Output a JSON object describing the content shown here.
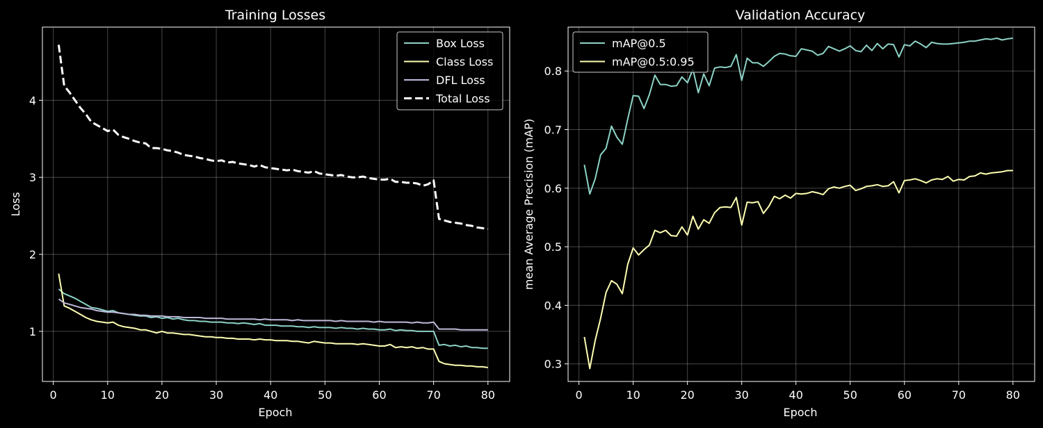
{
  "figure": {
    "background": "#000000"
  },
  "chart_data": [
    {
      "type": "line",
      "title": "Training Losses",
      "xlabel": "Epoch",
      "ylabel": "Loss",
      "xlim": [
        -2,
        84
      ],
      "ylim": [
        0.35,
        4.95
      ],
      "xticks": [
        "0",
        "10",
        "20",
        "30",
        "40",
        "50",
        "60",
        "70",
        "80"
      ],
      "yticks": [
        "1",
        "2",
        "3",
        "4"
      ],
      "grid": true,
      "legend_position": "top-right",
      "x": [
        1,
        2,
        3,
        4,
        5,
        6,
        7,
        8,
        9,
        10,
        11,
        12,
        13,
        14,
        15,
        16,
        17,
        18,
        19,
        20,
        21,
        22,
        23,
        24,
        25,
        26,
        27,
        28,
        29,
        30,
        31,
        32,
        33,
        34,
        35,
        36,
        37,
        38,
        39,
        40,
        41,
        42,
        43,
        44,
        45,
        46,
        47,
        48,
        49,
        50,
        51,
        52,
        53,
        54,
        55,
        56,
        57,
        58,
        59,
        60,
        61,
        62,
        63,
        64,
        65,
        66,
        67,
        68,
        69,
        70,
        71,
        72,
        73,
        74,
        75,
        76,
        77,
        78,
        79,
        80
      ],
      "series": [
        {
          "name": "Box Loss",
          "color": "#8dd3c7",
          "dashed": false,
          "values": [
            1.55,
            1.49,
            1.46,
            1.43,
            1.39,
            1.35,
            1.31,
            1.3,
            1.28,
            1.26,
            1.27,
            1.24,
            1.23,
            1.22,
            1.21,
            1.2,
            1.2,
            1.18,
            1.19,
            1.17,
            1.18,
            1.16,
            1.17,
            1.15,
            1.14,
            1.14,
            1.13,
            1.13,
            1.12,
            1.12,
            1.12,
            1.11,
            1.11,
            1.1,
            1.11,
            1.1,
            1.09,
            1.1,
            1.08,
            1.08,
            1.08,
            1.07,
            1.07,
            1.07,
            1.06,
            1.06,
            1.05,
            1.06,
            1.05,
            1.05,
            1.05,
            1.04,
            1.05,
            1.04,
            1.04,
            1.03,
            1.04,
            1.03,
            1.03,
            1.02,
            1.02,
            1.03,
            1.01,
            1.02,
            1.01,
            1.01,
            1.0,
            1.0,
            1.0,
            1.0,
            0.82,
            0.83,
            0.81,
            0.82,
            0.8,
            0.81,
            0.79,
            0.79,
            0.78,
            0.78
          ]
        },
        {
          "name": "Class Loss",
          "color": "#ffffb3",
          "dashed": false,
          "values": [
            1.75,
            1.33,
            1.3,
            1.26,
            1.22,
            1.18,
            1.15,
            1.13,
            1.12,
            1.11,
            1.12,
            1.08,
            1.06,
            1.05,
            1.04,
            1.02,
            1.02,
            1.0,
            0.98,
            1.0,
            0.98,
            0.98,
            0.97,
            0.96,
            0.96,
            0.95,
            0.94,
            0.93,
            0.93,
            0.92,
            0.92,
            0.91,
            0.91,
            0.9,
            0.9,
            0.9,
            0.89,
            0.9,
            0.89,
            0.89,
            0.88,
            0.88,
            0.88,
            0.87,
            0.87,
            0.86,
            0.85,
            0.87,
            0.86,
            0.85,
            0.85,
            0.84,
            0.84,
            0.84,
            0.84,
            0.83,
            0.84,
            0.83,
            0.82,
            0.81,
            0.81,
            0.83,
            0.79,
            0.8,
            0.79,
            0.8,
            0.78,
            0.79,
            0.77,
            0.77,
            0.61,
            0.58,
            0.57,
            0.56,
            0.56,
            0.55,
            0.55,
            0.54,
            0.54,
            0.53
          ]
        },
        {
          "name": "DFL Loss",
          "color": "#bebada",
          "dashed": false,
          "values": [
            1.42,
            1.37,
            1.35,
            1.33,
            1.31,
            1.3,
            1.29,
            1.27,
            1.26,
            1.25,
            1.25,
            1.24,
            1.23,
            1.22,
            1.22,
            1.21,
            1.21,
            1.2,
            1.2,
            1.2,
            1.19,
            1.19,
            1.19,
            1.18,
            1.18,
            1.18,
            1.18,
            1.17,
            1.17,
            1.17,
            1.17,
            1.16,
            1.16,
            1.16,
            1.16,
            1.16,
            1.16,
            1.15,
            1.16,
            1.15,
            1.15,
            1.15,
            1.15,
            1.14,
            1.15,
            1.14,
            1.14,
            1.14,
            1.14,
            1.14,
            1.14,
            1.13,
            1.14,
            1.13,
            1.13,
            1.13,
            1.13,
            1.13,
            1.12,
            1.13,
            1.12,
            1.12,
            1.12,
            1.12,
            1.12,
            1.11,
            1.12,
            1.11,
            1.11,
            1.12,
            1.03,
            1.03,
            1.03,
            1.03,
            1.02,
            1.02,
            1.02,
            1.02,
            1.02,
            1.02
          ]
        },
        {
          "name": "Total Loss",
          "color": "#ffffff",
          "dashed": true,
          "values": [
            4.72,
            4.19,
            4.1,
            4.0,
            3.9,
            3.82,
            3.72,
            3.68,
            3.64,
            3.6,
            3.62,
            3.55,
            3.52,
            3.5,
            3.47,
            3.45,
            3.44,
            3.38,
            3.38,
            3.37,
            3.35,
            3.34,
            3.32,
            3.29,
            3.28,
            3.27,
            3.25,
            3.24,
            3.22,
            3.21,
            3.22,
            3.19,
            3.2,
            3.18,
            3.17,
            3.16,
            3.14,
            3.16,
            3.13,
            3.12,
            3.11,
            3.1,
            3.09,
            3.1,
            3.08,
            3.07,
            3.06,
            3.08,
            3.05,
            3.04,
            3.03,
            3.02,
            3.03,
            3.01,
            3.0,
            3.0,
            3.01,
            2.99,
            2.98,
            2.97,
            2.97,
            2.98,
            2.94,
            2.94,
            2.93,
            2.93,
            2.92,
            2.89,
            2.91,
            2.96,
            2.46,
            2.44,
            2.42,
            2.41,
            2.4,
            2.38,
            2.37,
            2.35,
            2.34,
            2.33
          ]
        }
      ]
    },
    {
      "type": "line",
      "title": "Validation Accuracy",
      "xlabel": "Epoch",
      "ylabel": "mean Average Precision (mAP)",
      "xlim": [
        -2,
        84
      ],
      "ylim": [
        0.27,
        0.875
      ],
      "xticks": [
        "0",
        "10",
        "20",
        "30",
        "40",
        "50",
        "60",
        "70",
        "80"
      ],
      "yticks": [
        "0.3",
        "0.4",
        "0.5",
        "0.6",
        "0.7",
        "0.8"
      ],
      "grid": true,
      "legend_position": "top-left",
      "x": [
        1,
        2,
        3,
        4,
        5,
        6,
        7,
        8,
        9,
        10,
        11,
        12,
        13,
        14,
        15,
        16,
        17,
        18,
        19,
        20,
        21,
        22,
        23,
        24,
        25,
        26,
        27,
        28,
        29,
        30,
        31,
        32,
        33,
        34,
        35,
        36,
        37,
        38,
        39,
        40,
        41,
        42,
        43,
        44,
        45,
        46,
        47,
        48,
        49,
        50,
        51,
        52,
        53,
        54,
        55,
        56,
        57,
        58,
        59,
        60,
        61,
        62,
        63,
        64,
        65,
        66,
        67,
        68,
        69,
        70,
        71,
        72,
        73,
        74,
        75,
        76,
        77,
        78,
        79,
        80
      ],
      "series": [
        {
          "name": "mAP@0.5",
          "color": "#8dd3c7",
          "dashed": false,
          "values": [
            0.64,
            0.59,
            0.616,
            0.657,
            0.668,
            0.706,
            0.687,
            0.675,
            0.718,
            0.758,
            0.757,
            0.736,
            0.76,
            0.793,
            0.777,
            0.777,
            0.774,
            0.775,
            0.79,
            0.78,
            0.803,
            0.763,
            0.795,
            0.775,
            0.805,
            0.807,
            0.806,
            0.808,
            0.828,
            0.784,
            0.822,
            0.814,
            0.814,
            0.808,
            0.816,
            0.825,
            0.83,
            0.829,
            0.826,
            0.825,
            0.838,
            0.836,
            0.834,
            0.827,
            0.83,
            0.842,
            0.838,
            0.834,
            0.838,
            0.843,
            0.835,
            0.833,
            0.844,
            0.835,
            0.847,
            0.838,
            0.846,
            0.845,
            0.824,
            0.845,
            0.843,
            0.851,
            0.846,
            0.84,
            0.849,
            0.847,
            0.846,
            0.846,
            0.847,
            0.848,
            0.849,
            0.851,
            0.851,
            0.853,
            0.855,
            0.854,
            0.856,
            0.853,
            0.855,
            0.856
          ]
        },
        {
          "name": "mAP@0.5:0.95",
          "color": "#ffffb3",
          "dashed": false,
          "values": [
            0.346,
            0.292,
            0.34,
            0.378,
            0.422,
            0.442,
            0.436,
            0.42,
            0.47,
            0.498,
            0.486,
            0.495,
            0.503,
            0.528,
            0.524,
            0.528,
            0.519,
            0.518,
            0.534,
            0.52,
            0.552,
            0.53,
            0.546,
            0.54,
            0.558,
            0.567,
            0.568,
            0.567,
            0.584,
            0.537,
            0.576,
            0.575,
            0.577,
            0.557,
            0.569,
            0.586,
            0.582,
            0.588,
            0.583,
            0.591,
            0.59,
            0.591,
            0.594,
            0.592,
            0.589,
            0.599,
            0.602,
            0.6,
            0.603,
            0.605,
            0.596,
            0.599,
            0.603,
            0.604,
            0.606,
            0.603,
            0.604,
            0.611,
            0.592,
            0.613,
            0.614,
            0.616,
            0.613,
            0.609,
            0.614,
            0.616,
            0.615,
            0.62,
            0.612,
            0.615,
            0.614,
            0.62,
            0.621,
            0.626,
            0.624,
            0.626,
            0.627,
            0.628,
            0.63,
            0.63
          ]
        }
      ]
    }
  ]
}
